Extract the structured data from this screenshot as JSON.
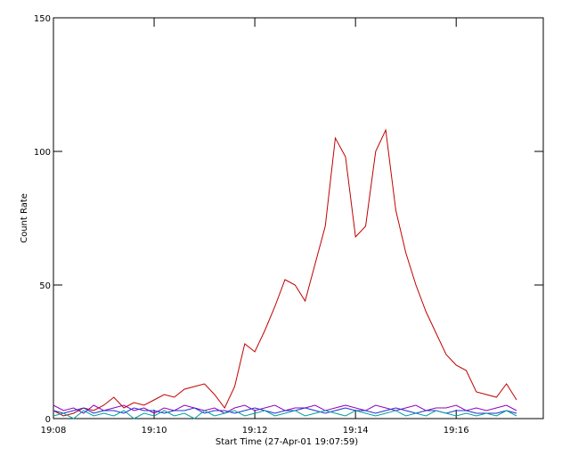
{
  "chart_data": {
    "type": "line",
    "xlabel": "Start Time (27-Apr-01 19:07:59)",
    "ylabel": "Count Rate",
    "x": [
      0,
      0.2,
      0.4,
      0.6,
      0.8,
      1,
      1.2,
      1.4,
      1.6,
      1.8,
      2,
      2.2,
      2.4,
      2.6,
      2.8,
      3,
      3.2,
      3.4,
      3.6,
      3.8,
      4,
      4.2,
      4.4,
      4.6,
      4.8,
      5,
      5.2,
      5.4,
      5.6,
      5.8,
      6,
      6.2,
      6.4,
      6.6,
      6.8,
      7,
      7.2,
      7.4,
      7.6,
      7.8,
      8,
      8.2,
      8.4,
      8.6,
      8.8,
      9,
      9.2
    ],
    "series": [
      {
        "name": "red",
        "color": "#c00000",
        "values": [
          3,
          1,
          2,
          4,
          3,
          5,
          8,
          4,
          6,
          5,
          7,
          9,
          8,
          11,
          12,
          13,
          9,
          4,
          12,
          28,
          25,
          33,
          42,
          52,
          50,
          44,
          58,
          72,
          105,
          98,
          68,
          72,
          100,
          108,
          78,
          62,
          50,
          40,
          32,
          24,
          20,
          18,
          10,
          9,
          8,
          13,
          7
        ]
      },
      {
        "name": "purple",
        "color": "#9000c0",
        "values": [
          5,
          3,
          4,
          2,
          5,
          3,
          4,
          5,
          3,
          4,
          2,
          4,
          3,
          5,
          4,
          3,
          4,
          2,
          4,
          5,
          3,
          4,
          5,
          3,
          4,
          4,
          5,
          3,
          4,
          5,
          4,
          3,
          5,
          4,
          3,
          4,
          5,
          3,
          4,
          4,
          5,
          3,
          4,
          3,
          4,
          5,
          3
        ]
      },
      {
        "name": "blue",
        "color": "#2030d0",
        "values": [
          3,
          2,
          3,
          4,
          2,
          3,
          3,
          2,
          4,
          3,
          3,
          2,
          3,
          3,
          4,
          2,
          3,
          3,
          2,
          3,
          4,
          3,
          2,
          3,
          3,
          4,
          3,
          2,
          3,
          4,
          3,
          3,
          2,
          3,
          4,
          3,
          2,
          3,
          3,
          2,
          3,
          3,
          2,
          2,
          2,
          3,
          2
        ]
      },
      {
        "name": "teal",
        "color": "#00a0a0",
        "values": [
          1,
          2,
          0,
          3,
          1,
          2,
          1,
          3,
          0,
          2,
          1,
          3,
          1,
          2,
          0,
          3,
          1,
          2,
          3,
          1,
          2,
          3,
          1,
          2,
          3,
          1,
          2,
          3,
          2,
          1,
          3,
          2,
          1,
          2,
          3,
          1,
          2,
          1,
          3,
          2,
          1,
          2,
          1,
          2,
          1,
          3,
          1
        ]
      }
    ],
    "xlim": [
      0,
      9.73
    ],
    "ylim": [
      0,
      150
    ],
    "xticks": [
      {
        "value": 0,
        "label": "19:08"
      },
      {
        "value": 2,
        "label": "19:10"
      },
      {
        "value": 4,
        "label": "19:12"
      },
      {
        "value": 6,
        "label": "19:14"
      },
      {
        "value": 8,
        "label": "19:16"
      }
    ],
    "yticks": [
      0,
      50,
      100,
      150
    ]
  }
}
